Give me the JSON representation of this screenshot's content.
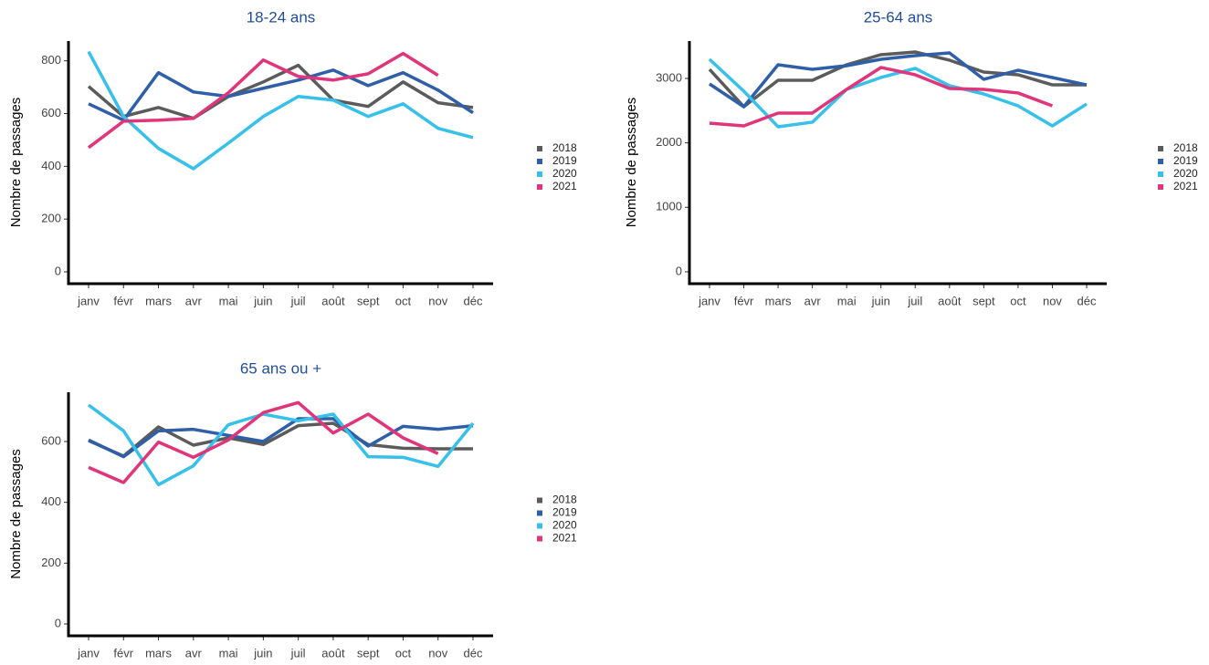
{
  "chart_data": [
    {
      "type": "line",
      "title": "18-24 ans",
      "y_label": "Nombre de passages",
      "categories": [
        "janv",
        "févr",
        "mars",
        "avr",
        "mai",
        "juin",
        "juil",
        "août",
        "sept",
        "oct",
        "nov",
        "déc"
      ],
      "ylim": [
        -45,
        875
      ],
      "yticks": [
        0,
        200,
        400,
        600,
        800
      ],
      "series": [
        {
          "name": "2018",
          "color": "#5b5b5b",
          "values": [
            703,
            589,
            623,
            582,
            665,
            720,
            783,
            651,
            627,
            720,
            641,
            623
          ]
        },
        {
          "name": "2019",
          "color": "#2e5fa8",
          "values": [
            637,
            575,
            755,
            682,
            665,
            696,
            727,
            765,
            706,
            755,
            689,
            603
          ]
        },
        {
          "name": "2020",
          "color": "#36c0ea",
          "values": [
            835,
            589,
            468,
            391,
            488,
            589,
            665,
            651,
            589,
            637,
            544,
            509
          ]
        },
        {
          "name": "2021",
          "color": "#e0357a",
          "values": [
            471,
            571,
            575,
            582,
            679,
            803,
            741,
            727,
            751,
            828,
            745,
            null
          ]
        }
      ]
    },
    {
      "type": "line",
      "title": "25-64 ans",
      "y_label": "Nombre de passages",
      "categories": [
        "janv",
        "févr",
        "mars",
        "avr",
        "mai",
        "juin",
        "juil",
        "août",
        "sept",
        "oct",
        "nov",
        "déc"
      ],
      "ylim": [
        -185,
        3580
      ],
      "yticks": [
        0,
        1000,
        2000,
        3000
      ],
      "series": [
        {
          "name": "2018",
          "color": "#5b5b5b",
          "values": [
            3141,
            2561,
            2971,
            2971,
            3212,
            3368,
            3410,
            3283,
            3099,
            3057,
            2900,
            2900
          ]
        },
        {
          "name": "2019",
          "color": "#2e5fa8",
          "values": [
            2915,
            2561,
            3212,
            3141,
            3198,
            3297,
            3354,
            3396,
            2986,
            3127,
            3014,
            2900
          ]
        },
        {
          "name": "2020",
          "color": "#36c0ea",
          "values": [
            3297,
            2802,
            2250,
            2321,
            2830,
            3014,
            3156,
            2887,
            2759,
            2575,
            2264,
            2604
          ]
        },
        {
          "name": "2021",
          "color": "#e0357a",
          "values": [
            2306,
            2264,
            2462,
            2462,
            2830,
            3170,
            3057,
            2844,
            2830,
            2774,
            2575,
            null
          ]
        }
      ]
    },
    {
      "type": "line",
      "title": "65 ans ou +",
      "y_label": "Nombre de passages",
      "categories": [
        "janv",
        "févr",
        "mars",
        "avr",
        "mai",
        "juin",
        "juil",
        "août",
        "sept",
        "oct",
        "nov",
        "déc"
      ],
      "ylim": [
        -39,
        762
      ],
      "yticks": [
        0,
        200,
        400,
        600
      ],
      "series": [
        {
          "name": "2018",
          "color": "#5b5b5b",
          "values": [
            603,
            552,
            648,
            588,
            612,
            590,
            652,
            660,
            590,
            578,
            576,
            576
          ]
        },
        {
          "name": "2019",
          "color": "#2e5fa8",
          "values": [
            605,
            550,
            635,
            640,
            620,
            600,
            675,
            675,
            585,
            650,
            640,
            652
          ]
        },
        {
          "name": "2020",
          "color": "#36c0ea",
          "values": [
            720,
            635,
            458,
            520,
            655,
            690,
            668,
            690,
            550,
            548,
            518,
            660
          ]
        },
        {
          "name": "2021",
          "color": "#e0357a",
          "values": [
            515,
            465,
            598,
            548,
            605,
            695,
            728,
            628,
            690,
            612,
            560,
            null
          ]
        }
      ]
    }
  ]
}
